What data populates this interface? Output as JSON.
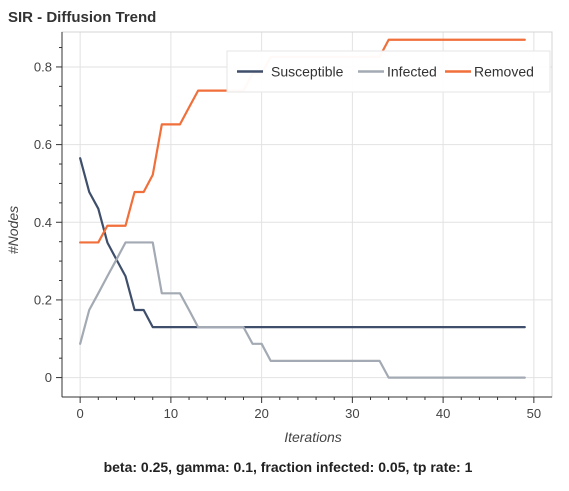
{
  "chart_data": {
    "type": "line",
    "title": "SIR - Diffusion Trend",
    "xlabel": "Iterations",
    "ylabel": "#Nodes",
    "caption": "beta: 0.25, gamma: 0.1, fraction infected: 0.05, tp rate: 1",
    "xlim": [
      -2,
      52
    ],
    "ylim": [
      -0.05,
      0.89
    ],
    "x_ticks": [
      0,
      10,
      20,
      30,
      40,
      50
    ],
    "y_ticks": [
      0,
      0.2,
      0.4,
      0.6,
      0.8
    ],
    "x_tick_labels": [
      "0",
      "10",
      "20",
      "30",
      "40",
      "50"
    ],
    "y_tick_labels": [
      "0",
      "0.2",
      "0.4",
      "0.6",
      "0.8"
    ],
    "grid": true,
    "legend_position": "top-right",
    "x": [
      0,
      1,
      2,
      3,
      4,
      5,
      6,
      7,
      8,
      9,
      10,
      11,
      12,
      13,
      14,
      15,
      16,
      17,
      18,
      19,
      20,
      21,
      22,
      23,
      24,
      25,
      26,
      27,
      28,
      29,
      30,
      31,
      32,
      33,
      34,
      35,
      36,
      37,
      38,
      39,
      40,
      41,
      42,
      43,
      44,
      45,
      46,
      47,
      48,
      49
    ],
    "series": [
      {
        "name": "Susceptible",
        "color": "#3f4f6b",
        "values": [
          0.565,
          0.478,
          0.435,
          0.348,
          0.304,
          0.261,
          0.174,
          0.174,
          0.13,
          0.13,
          0.13,
          0.13,
          0.13,
          0.13,
          0.13,
          0.13,
          0.13,
          0.13,
          0.13,
          0.13,
          0.13,
          0.13,
          0.13,
          0.13,
          0.13,
          0.13,
          0.13,
          0.13,
          0.13,
          0.13,
          0.13,
          0.13,
          0.13,
          0.13,
          0.13,
          0.13,
          0.13,
          0.13,
          0.13,
          0.13,
          0.13,
          0.13,
          0.13,
          0.13,
          0.13,
          0.13,
          0.13,
          0.13,
          0.13,
          0.13
        ]
      },
      {
        "name": "Infected",
        "color": "#a3aab3",
        "values": [
          0.087,
          0.174,
          0.217,
          0.261,
          0.304,
          0.348,
          0.348,
          0.348,
          0.348,
          0.217,
          0.217,
          0.217,
          0.174,
          0.13,
          0.13,
          0.13,
          0.13,
          0.13,
          0.13,
          0.087,
          0.087,
          0.043,
          0.043,
          0.043,
          0.043,
          0.043,
          0.043,
          0.043,
          0.043,
          0.043,
          0.043,
          0.043,
          0.043,
          0.043,
          0.0,
          0.0,
          0.0,
          0.0,
          0.0,
          0.0,
          0.0,
          0.0,
          0.0,
          0.0,
          0.0,
          0.0,
          0.0,
          0.0,
          0.0,
          0.0
        ]
      },
      {
        "name": "Removed",
        "color": "#f06f3a",
        "values": [
          0.348,
          0.348,
          0.348,
          0.391,
          0.391,
          0.391,
          0.478,
          0.478,
          0.522,
          0.652,
          0.652,
          0.652,
          0.696,
          0.739,
          0.739,
          0.739,
          0.739,
          0.739,
          0.739,
          0.783,
          0.783,
          0.826,
          0.826,
          0.826,
          0.826,
          0.826,
          0.826,
          0.826,
          0.826,
          0.826,
          0.826,
          0.826,
          0.826,
          0.826,
          0.87,
          0.87,
          0.87,
          0.87,
          0.87,
          0.87,
          0.87,
          0.87,
          0.87,
          0.87,
          0.87,
          0.87,
          0.87,
          0.87,
          0.87,
          0.87
        ]
      }
    ]
  }
}
